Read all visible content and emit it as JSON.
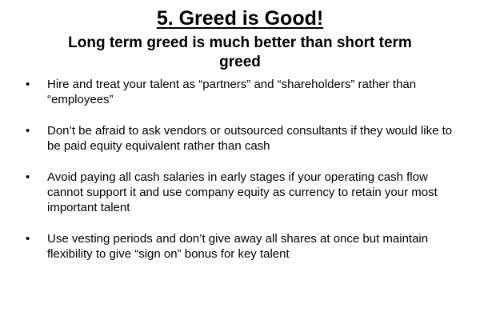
{
  "slide": {
    "title": "5. Greed is Good!",
    "subtitle": "Long term greed is much better than short term greed",
    "bullet_marker": "•",
    "bullets": [
      "Hire and treat your talent as “partners” and “shareholders” rather than “employees”",
      "Don’t be afraid to ask vendors or outsourced consultants if they would like to be paid equity equivalent rather than cash",
      "Avoid paying all cash salaries in early stages if your operating cash flow cannot support it and use company equity as currency to retain your most important talent",
      "Use vesting periods and don’t give away all shares at once but maintain flexibility to give “sign on” bonus for key talent"
    ]
  }
}
